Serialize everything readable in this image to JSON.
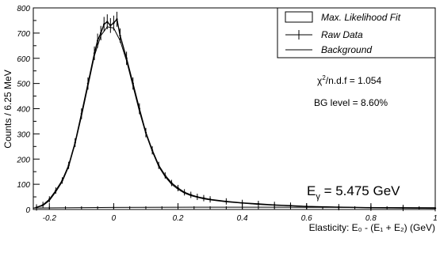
{
  "chart_data": {
    "type": "line",
    "title": "",
    "xlabel": "Elasticity: E₀ - (E₁ + E₂) (GeV)",
    "ylabel": "Counts / 6.25 MeV",
    "xlim": [
      -0.25,
      1.0
    ],
    "ylim": [
      0,
      800
    ],
    "xticks": [
      -0.2,
      0,
      0.2,
      0.4,
      0.6,
      0.8,
      1
    ],
    "xtick_labels": [
      "-0.2",
      "0",
      "0.2",
      "0.4",
      "0.6",
      "0.8",
      "1"
    ],
    "yticks": [
      0,
      100,
      200,
      300,
      400,
      500,
      600,
      700,
      800
    ],
    "ytick_labels": [
      "0",
      "100",
      "200",
      "300",
      "400",
      "500",
      "600",
      "700",
      "800"
    ],
    "legend": {
      "position": "top-right",
      "entries": [
        "Max. Likelihood Fit",
        "Raw Data",
        "Background"
      ]
    },
    "annotations": {
      "chi2_prefix": "χ",
      "chi2_sup": "2",
      "chi2_rest": "/n.d.f = 1.054",
      "bg_level": "BG level = 8.60%",
      "energy_prefix": "E",
      "energy_sub": "γ",
      "energy_rest": " = 5.475 GeV"
    },
    "series": [
      {
        "name": "Max. Likelihood Fit",
        "x": [
          -0.25,
          -0.22,
          -0.2,
          -0.18,
          -0.16,
          -0.14,
          -0.12,
          -0.1,
          -0.08,
          -0.06,
          -0.04,
          -0.02,
          0.0,
          0.02,
          0.04,
          0.06,
          0.08,
          0.1,
          0.12,
          0.14,
          0.16,
          0.18,
          0.2,
          0.22,
          0.24,
          0.26,
          0.28,
          0.3,
          0.35,
          0.4,
          0.45,
          0.5,
          0.55,
          0.6,
          0.7,
          0.8,
          0.9,
          1.0
        ],
        "y": [
          5,
          15,
          35,
          70,
          110,
          170,
          260,
          370,
          490,
          610,
          690,
          725,
          720,
          670,
          590,
          490,
          390,
          300,
          230,
          170,
          130,
          100,
          80,
          65,
          55,
          48,
          42,
          38,
          30,
          25,
          20,
          17,
          14,
          12,
          9,
          7,
          6,
          5
        ]
      },
      {
        "name": "Raw Data",
        "x": [
          -0.24,
          -0.22,
          -0.2,
          -0.18,
          -0.16,
          -0.14,
          -0.12,
          -0.1,
          -0.08,
          -0.06,
          -0.05,
          -0.04,
          -0.03,
          -0.02,
          -0.01,
          0.0,
          0.01,
          0.02,
          0.04,
          0.06,
          0.08,
          0.1,
          0.12,
          0.14,
          0.16,
          0.18,
          0.2,
          0.22,
          0.24,
          0.26,
          0.28,
          0.3,
          0.35,
          0.4,
          0.45,
          0.5,
          0.55,
          0.6,
          0.7,
          0.8,
          0.9,
          1.0
        ],
        "y": [
          8,
          18,
          40,
          75,
          115,
          175,
          265,
          380,
          500,
          620,
          670,
          700,
          735,
          745,
          730,
          740,
          755,
          690,
          600,
          500,
          400,
          305,
          235,
          175,
          135,
          105,
          85,
          68,
          58,
          50,
          45,
          40,
          32,
          26,
          22,
          18,
          15,
          12,
          9,
          7,
          6,
          5
        ]
      },
      {
        "name": "Background",
        "x": [
          -0.25,
          0.0,
          0.25,
          0.5,
          0.75,
          1.0
        ],
        "y": [
          6,
          8,
          9,
          9,
          8,
          7
        ]
      }
    ]
  }
}
